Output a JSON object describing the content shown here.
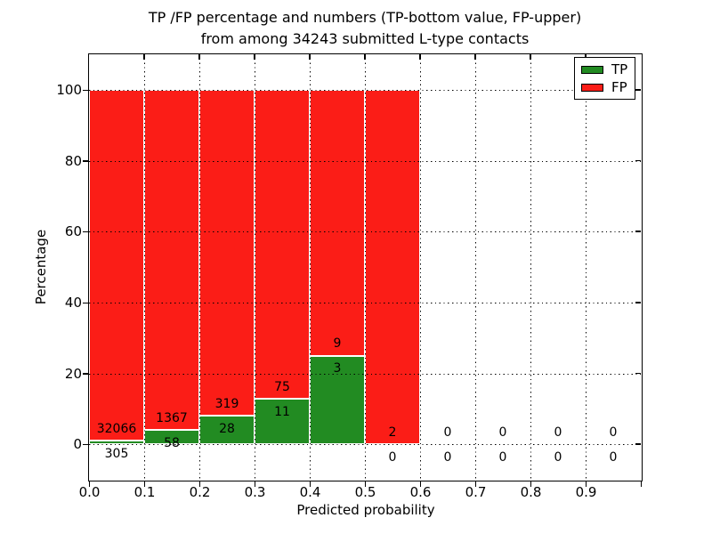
{
  "title": {
    "line1": "TP /FP percentage and numbers (TP-bottom value, FP-upper)",
    "line2": "from among 34243 submitted L-type contacts"
  },
  "axes": {
    "xlabel": "Predicted probability",
    "ylabel": "Percentage"
  },
  "legend": {
    "position": "upper right",
    "entries": [
      {
        "name": "TP",
        "label": "TP",
        "color": "#228b22"
      },
      {
        "name": "FP",
        "label": "FP",
        "color": "#fb1d17"
      }
    ]
  },
  "chart_data": {
    "type": "bar",
    "stacked": true,
    "title": "TP /FP percentage and numbers (TP-bottom value, FP-upper) from among 34243 submitted L-type contacts",
    "total_submitted": 34243,
    "contact_type": "L-type",
    "xlabel": "Predicted probability",
    "ylabel": "Percentage",
    "xlim": [
      0.0,
      1.0
    ],
    "ylim": [
      -10,
      110
    ],
    "xticks": [
      "0.0",
      "0.1",
      "0.2",
      "0.3",
      "0.4",
      "0.5",
      "0.6",
      "0.7",
      "0.8",
      "0.9"
    ],
    "yticks": [
      "0",
      "20",
      "40",
      "60",
      "80",
      "100"
    ],
    "grid": true,
    "grid_style": "dotted",
    "legend_position": "upper right",
    "series": [
      {
        "name": "TP",
        "color": "#228b22",
        "counts": [
          305,
          58,
          28,
          11,
          3,
          0,
          0,
          0,
          0,
          0
        ]
      },
      {
        "name": "FP",
        "color": "#fb1d17",
        "counts": [
          32066,
          1367,
          319,
          75,
          9,
          2,
          0,
          0,
          0,
          0
        ]
      }
    ],
    "bins": [
      {
        "x_range": [
          0.0,
          0.1
        ],
        "tp_count": 305,
        "fp_count": 32066,
        "tp_pct": 0.94,
        "fp_pct": 99.06,
        "has_bar": true
      },
      {
        "x_range": [
          0.1,
          0.2
        ],
        "tp_count": 58,
        "fp_count": 1367,
        "tp_pct": 4.07,
        "fp_pct": 95.93,
        "has_bar": true
      },
      {
        "x_range": [
          0.2,
          0.3
        ],
        "tp_count": 28,
        "fp_count": 319,
        "tp_pct": 8.07,
        "fp_pct": 91.93,
        "has_bar": true
      },
      {
        "x_range": [
          0.3,
          0.4
        ],
        "tp_count": 11,
        "fp_count": 75,
        "tp_pct": 12.79,
        "fp_pct": 87.21,
        "has_bar": true
      },
      {
        "x_range": [
          0.4,
          0.5
        ],
        "tp_count": 3,
        "fp_count": 9,
        "tp_pct": 25.0,
        "fp_pct": 75.0,
        "has_bar": true
      },
      {
        "x_range": [
          0.5,
          0.6
        ],
        "tp_count": 0,
        "fp_count": 2,
        "tp_pct": 0.0,
        "fp_pct": 100.0,
        "has_bar": true
      },
      {
        "x_range": [
          0.6,
          0.7
        ],
        "tp_count": 0,
        "fp_count": 0,
        "tp_pct": null,
        "fp_pct": null,
        "has_bar": false
      },
      {
        "x_range": [
          0.7,
          0.8
        ],
        "tp_count": 0,
        "fp_count": 0,
        "tp_pct": null,
        "fp_pct": null,
        "has_bar": false
      },
      {
        "x_range": [
          0.8,
          0.9
        ],
        "tp_count": 0,
        "fp_count": 0,
        "tp_pct": null,
        "fp_pct": null,
        "has_bar": false
      },
      {
        "x_range": [
          0.9,
          1.0
        ],
        "tp_count": 0,
        "fp_count": 0,
        "tp_pct": null,
        "fp_pct": null,
        "has_bar": false
      }
    ],
    "colors": {
      "tp": "#228b22",
      "fp": "#fb1d17",
      "bar_edge": "#ffffff",
      "grid": "#000000",
      "background": "#ffffff"
    }
  }
}
